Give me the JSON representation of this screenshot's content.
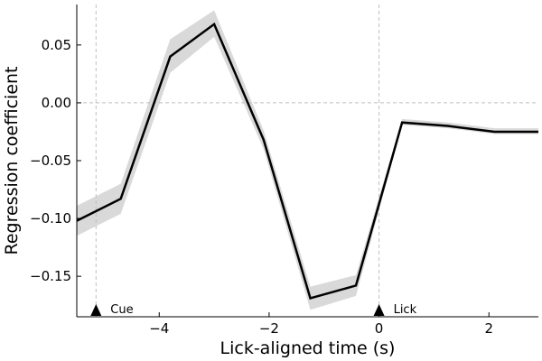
{
  "chart_data": {
    "type": "line",
    "title": "",
    "xlabel": "Lick-aligned time (s)",
    "ylabel": "Regression coefficient",
    "xlim": [
      -5.5,
      2.9
    ],
    "ylim": [
      -0.185,
      0.085
    ],
    "xticks": [
      {
        "value": -4,
        "label": "−4"
      },
      {
        "value": -2,
        "label": "−2"
      },
      {
        "value": 0,
        "label": "0"
      },
      {
        "value": 2,
        "label": "2"
      }
    ],
    "yticks": [
      {
        "value": 0.05,
        "label": "0.05"
      },
      {
        "value": 0.0,
        "label": "0.00"
      },
      {
        "value": -0.05,
        "label": "−0.05"
      },
      {
        "value": -0.1,
        "label": "−0.10"
      },
      {
        "value": -0.15,
        "label": "−0.15"
      }
    ],
    "grid": false,
    "series": [
      {
        "x": [
          -5.5,
          -4.7,
          -3.8,
          -3.0,
          -2.1,
          -1.25,
          -0.42,
          0.42,
          1.25,
          2.1,
          2.9
        ],
        "y": [
          -0.102,
          -0.083,
          0.04,
          0.068,
          -0.032,
          -0.169,
          -0.158,
          -0.017,
          -0.02,
          -0.025,
          -0.025
        ],
        "lower": [
          -0.115,
          -0.096,
          0.026,
          0.057,
          -0.04,
          -0.179,
          -0.167,
          -0.019,
          -0.022,
          -0.027,
          -0.027
        ],
        "upper": [
          -0.089,
          -0.07,
          0.055,
          0.08,
          -0.024,
          -0.159,
          -0.149,
          -0.014,
          -0.017,
          -0.022,
          -0.022
        ],
        "color": "#000000",
        "band_color": "#d9d9d9"
      }
    ],
    "reference_lines": [
      {
        "axis": "x",
        "value": -5.15
      },
      {
        "axis": "x",
        "value": 0
      },
      {
        "axis": "y",
        "value": 0
      }
    ],
    "markers": [
      {
        "x": -5.15,
        "label": "Cue"
      },
      {
        "x": 0,
        "label": "Lick"
      }
    ]
  }
}
